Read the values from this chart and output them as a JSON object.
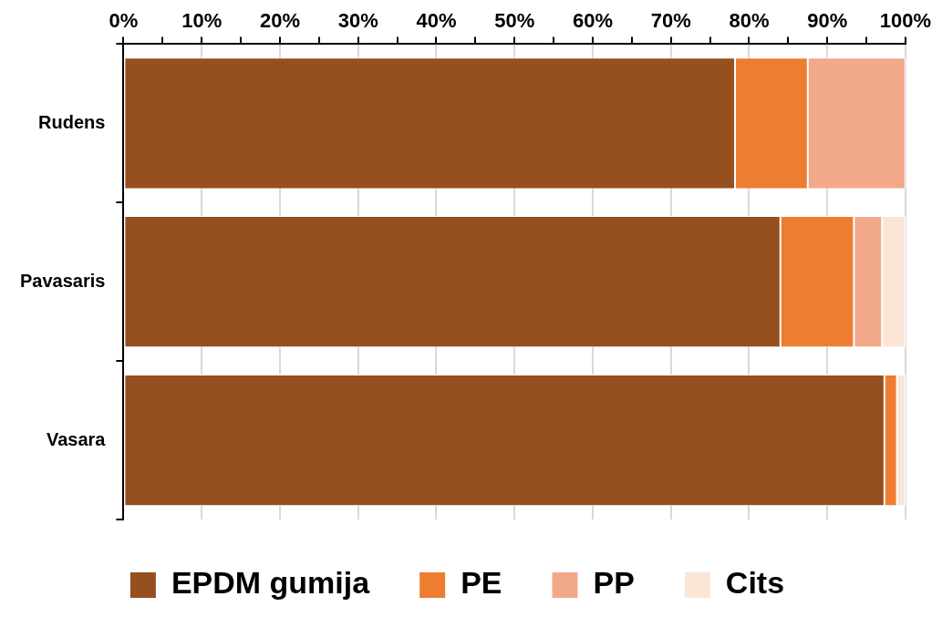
{
  "chart_data": {
    "type": "bar",
    "orientation": "horizontal",
    "stacked": true,
    "categories": [
      "Rudens",
      "Pavasaris",
      "Vasara"
    ],
    "series": [
      {
        "name": "EPDM gumija",
        "color": "#964f1e",
        "values": [
          78.2,
          84.0,
          97.3
        ]
      },
      {
        "name": "PE",
        "color": "#ed7d31",
        "values": [
          9.3,
          9.4,
          1.6
        ]
      },
      {
        "name": "PP",
        "color": "#f1a98a",
        "values": [
          12.5,
          3.6,
          0
        ]
      },
      {
        "name": "Cits",
        "color": "#fbe5d6",
        "values": [
          0,
          3.0,
          1.1
        ]
      }
    ],
    "xlim": [
      0,
      100
    ],
    "xticks": [
      {
        "value": 0,
        "label": "0%"
      },
      {
        "value": 5,
        "label": null
      },
      {
        "value": 10,
        "label": "10%"
      },
      {
        "value": 15,
        "label": null
      },
      {
        "value": 20,
        "label": "20%"
      },
      {
        "value": 25,
        "label": null
      },
      {
        "value": 30,
        "label": "30%"
      },
      {
        "value": 35,
        "label": null
      },
      {
        "value": 40,
        "label": "40%"
      },
      {
        "value": 45,
        "label": null
      },
      {
        "value": 50,
        "label": "50%"
      },
      {
        "value": 55,
        "label": null
      },
      {
        "value": 60,
        "label": "60%"
      },
      {
        "value": 65,
        "label": null
      },
      {
        "value": 70,
        "label": "70%"
      },
      {
        "value": 75,
        "label": null
      },
      {
        "value": 80,
        "label": "80%"
      },
      {
        "value": 85,
        "label": null
      },
      {
        "value": 90,
        "label": "90%"
      },
      {
        "value": 95,
        "label": null
      },
      {
        "value": 100,
        "label": "100%"
      }
    ],
    "grid": "x",
    "legend": "bottom"
  }
}
